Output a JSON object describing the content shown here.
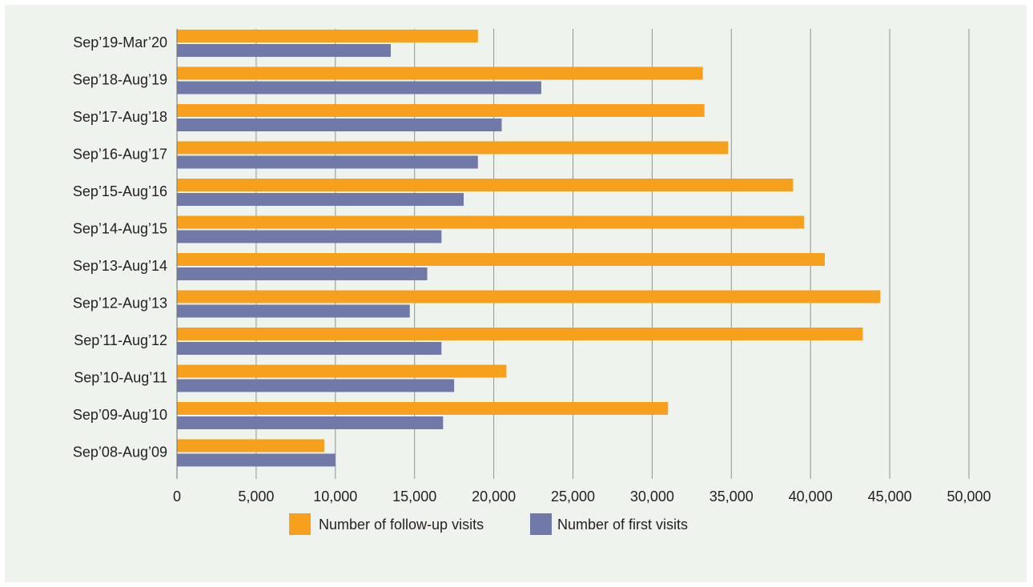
{
  "chart_data": {
    "type": "bar",
    "orientation": "horizontal",
    "categories": [
      "Sep’19-Mar’20",
      "Sep’18-Aug’19",
      "Sep’17-Aug’18",
      "Sep’16-Aug’17",
      "Sep’15-Aug’16",
      "Sep’14-Aug’15",
      "Sep’13-Aug’14",
      "Sep’12-Aug’13",
      "Sep’11-Aug’12",
      "Sep’10-Aug’11",
      "Sep’09-Aug’10",
      "Sep’08-Aug’09"
    ],
    "series": [
      {
        "name": "Number of follow-up visits",
        "color": "#f7a01e",
        "values": [
          19000,
          33200,
          33300,
          34800,
          38900,
          39600,
          40900,
          44400,
          43300,
          20800,
          31000,
          9300
        ]
      },
      {
        "name": "Number of first visits",
        "color": "#7179a8",
        "values": [
          13500,
          23000,
          20500,
          19000,
          18100,
          16700,
          15800,
          14700,
          16700,
          17500,
          16800,
          10000
        ]
      }
    ],
    "xlim": [
      0,
      50000
    ],
    "x_ticks": [
      "0",
      "5,000",
      "10,000",
      "15,000",
      "20,000",
      "25,000",
      "30,000",
      "35,000",
      "40,000",
      "45,000",
      "50,000"
    ],
    "x_tick_values": [
      0,
      5000,
      10000,
      15000,
      20000,
      25000,
      30000,
      35000,
      40000,
      45000,
      50000
    ],
    "grid": "vertical",
    "legend_position": "bottom-center",
    "title": "",
    "xlabel": "",
    "ylabel": ""
  }
}
